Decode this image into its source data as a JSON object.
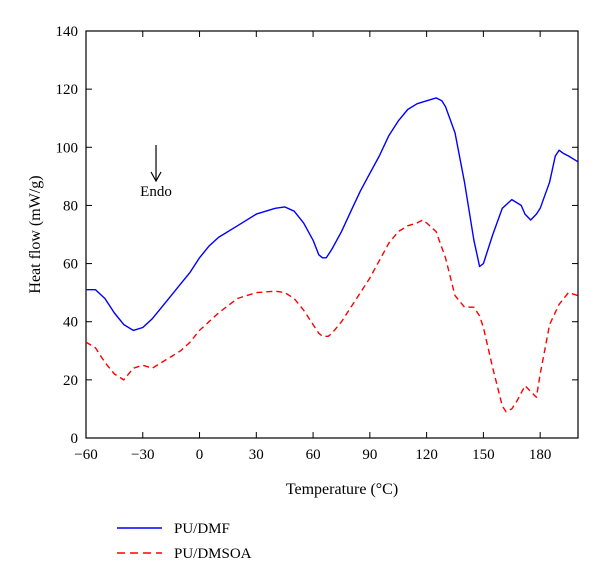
{
  "chart_data": {
    "type": "line",
    "title": "",
    "xlabel": "Temperature (°C)",
    "ylabel": "Heat flow (mW/g)",
    "xlim": [
      -60,
      200
    ],
    "ylim": [
      0,
      140
    ],
    "x_ticks": [
      -60,
      -30,
      0,
      30,
      60,
      90,
      120,
      150,
      180
    ],
    "y_ticks": [
      0,
      20,
      40,
      60,
      80,
      100,
      120,
      140
    ],
    "x_tick_labels": [
      "−60",
      "−30",
      "0",
      "30",
      "60",
      "90",
      "120",
      "150",
      "180"
    ],
    "y_tick_labels": [
      "0",
      "20",
      "40",
      "60",
      "80",
      "100",
      "120",
      "140"
    ],
    "grid": false,
    "legend_position": "below",
    "annotation": {
      "text": "Endo",
      "x": -23,
      "y": 92,
      "arrow": "down"
    },
    "series": [
      {
        "name": "PU/DMF",
        "color": "#0000ff",
        "dash": "solid",
        "x": [
          -60,
          -55,
          -50,
          -45,
          -40,
          -35,
          -30,
          -25,
          -20,
          -15,
          -10,
          -5,
          0,
          5,
          10,
          20,
          30,
          40,
          45,
          50,
          55,
          60,
          63,
          65,
          67,
          70,
          75,
          80,
          85,
          90,
          95,
          100,
          105,
          110,
          115,
          120,
          125,
          128,
          130,
          135,
          140,
          145,
          148,
          150,
          155,
          160,
          165,
          170,
          172,
          175,
          178,
          180,
          185,
          188,
          190,
          192,
          195,
          200
        ],
        "y": [
          51,
          51,
          48,
          43,
          39,
          37,
          38,
          41,
          45,
          49,
          53,
          57,
          62,
          66,
          69,
          73,
          77,
          79,
          79.5,
          78,
          74,
          68,
          63,
          62,
          62,
          65,
          71,
          78,
          85,
          91,
          97,
          104,
          109,
          113,
          115,
          116,
          117,
          116,
          114,
          105,
          88,
          68,
          59,
          60,
          70,
          79,
          82,
          80,
          77,
          75,
          77,
          79,
          88,
          97,
          99,
          98,
          97,
          95
        ]
      },
      {
        "name": "PU/DMSOA",
        "color": "#ff0000",
        "dash": "dashed",
        "x": [
          -60,
          -55,
          -50,
          -45,
          -40,
          -35,
          -30,
          -25,
          -20,
          -15,
          -10,
          -5,
          0,
          5,
          10,
          20,
          30,
          40,
          45,
          50,
          55,
          60,
          63,
          65,
          68,
          70,
          75,
          80,
          85,
          90,
          95,
          100,
          105,
          110,
          115,
          118,
          120,
          125,
          130,
          135,
          140,
          145,
          148,
          150,
          155,
          160,
          162,
          165,
          168,
          172,
          175,
          178,
          180,
          185,
          190,
          195,
          200
        ],
        "y": [
          33,
          31,
          26,
          22,
          20,
          24,
          25,
          24,
          26,
          28,
          30,
          33,
          37,
          40,
          43,
          48,
          50,
          50.5,
          50,
          48,
          44,
          39,
          36,
          35,
          35,
          36,
          40,
          45,
          50,
          55,
          61,
          67,
          71,
          73,
          74,
          75,
          74,
          71,
          62,
          49,
          45,
          45,
          42,
          38,
          24,
          11,
          9,
          10,
          13,
          18,
          16,
          14,
          22,
          39,
          46,
          50,
          49
        ]
      }
    ]
  }
}
